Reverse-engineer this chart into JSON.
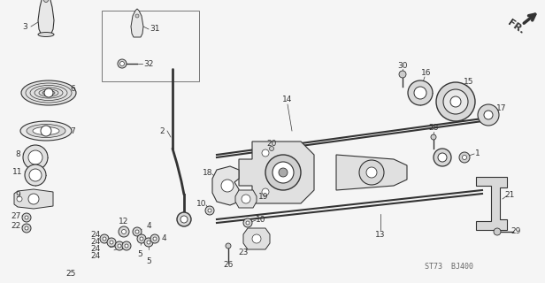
{
  "bg_color": "#f5f5f5",
  "lc": "#333333",
  "stamp_text": "ST73  BJ400",
  "figsize": [
    6.16,
    3.2
  ],
  "dpi": 100
}
